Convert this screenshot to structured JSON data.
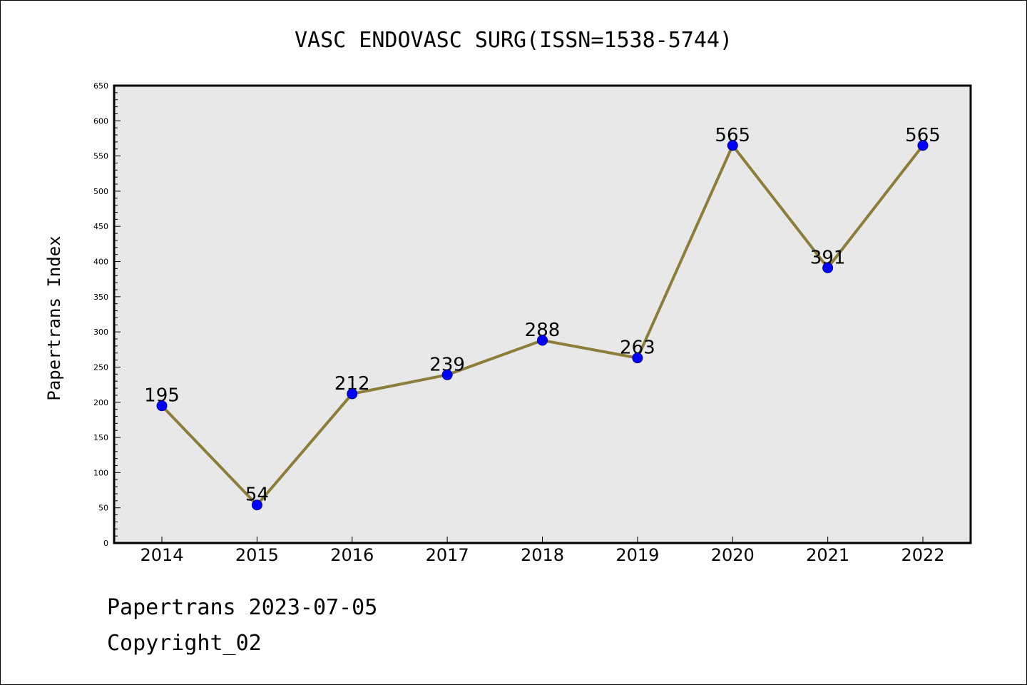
{
  "chart_data": {
    "type": "line",
    "title": "VASC ENDOVASC SURG(ISSN=1538-5744)",
    "xlabel": "",
    "ylabel": "Papertrans Index",
    "categories": [
      "2014",
      "2015",
      "2016",
      "2017",
      "2018",
      "2019",
      "2020",
      "2021",
      "2022"
    ],
    "series": [
      {
        "values": [
          195,
          54,
          212,
          239,
          288,
          263,
          565,
          391,
          565
        ]
      }
    ],
    "data_labels": [
      "195",
      "54",
      "212",
      "239",
      "288",
      "263",
      "565",
      "391",
      "565"
    ],
    "ylim": [
      0,
      650
    ],
    "yticks": [
      0,
      50,
      100,
      150,
      200,
      250,
      300,
      350,
      400,
      450,
      500,
      550,
      600,
      650
    ],
    "grid": false,
    "legend": "none",
    "colors": {
      "line": "#8b7d3a",
      "marker": "#0000ff",
      "marker_edge": "#00008b",
      "plot_background": "#e8e8e8",
      "axis": "#000000"
    }
  },
  "footer": {
    "date_text": "Papertrans 2023-07-05",
    "copyright_text": "Copyright_02"
  }
}
